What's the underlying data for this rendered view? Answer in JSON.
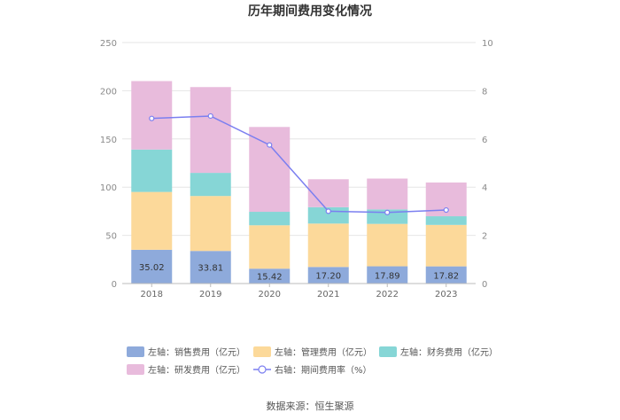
{
  "chart_data": {
    "type": "bar",
    "stacked": true,
    "title": "历年期间费用变化情况",
    "categories": [
      "2018",
      "2019",
      "2020",
      "2021",
      "2022",
      "2023"
    ],
    "y_left": {
      "ylim": [
        0,
        250
      ],
      "ticks": [
        0,
        50,
        100,
        150,
        200,
        250
      ]
    },
    "y_right": {
      "ylim": [
        0,
        10
      ],
      "ticks": [
        0,
        2,
        4,
        6,
        8,
        10
      ]
    },
    "series": [
      {
        "name": "左轴：销售费用（亿元）",
        "axis": "left",
        "kind": "bar",
        "color": "#8eaadb",
        "values": [
          35.02,
          33.81,
          15.42,
          17.2,
          17.89,
          17.82
        ],
        "labels": [
          "35.02",
          "33.81",
          "15.42",
          "17.20",
          "17.89",
          "17.82"
        ]
      },
      {
        "name": "左轴：管理费用（亿元）",
        "axis": "left",
        "kind": "bar",
        "color": "#fcd99a",
        "values": [
          60,
          57,
          45,
          45,
          44,
          43
        ]
      },
      {
        "name": "左轴：财务费用（亿元）",
        "axis": "left",
        "kind": "bar",
        "color": "#86d6d6",
        "values": [
          44,
          24,
          14,
          17,
          15,
          9
        ]
      },
      {
        "name": "左轴：研发费用（亿元）",
        "axis": "left",
        "kind": "bar",
        "color": "#e8bbdc",
        "values": [
          71,
          89,
          88,
          29,
          32,
          35
        ]
      },
      {
        "name": "右轴：期间费用率（%）",
        "axis": "right",
        "kind": "line",
        "color": "#7b7ff0",
        "values": [
          6.85,
          6.95,
          5.75,
          3.0,
          2.95,
          3.05
        ]
      }
    ],
    "legend_position": "bottom",
    "source": "数据来源：恒生聚源"
  }
}
